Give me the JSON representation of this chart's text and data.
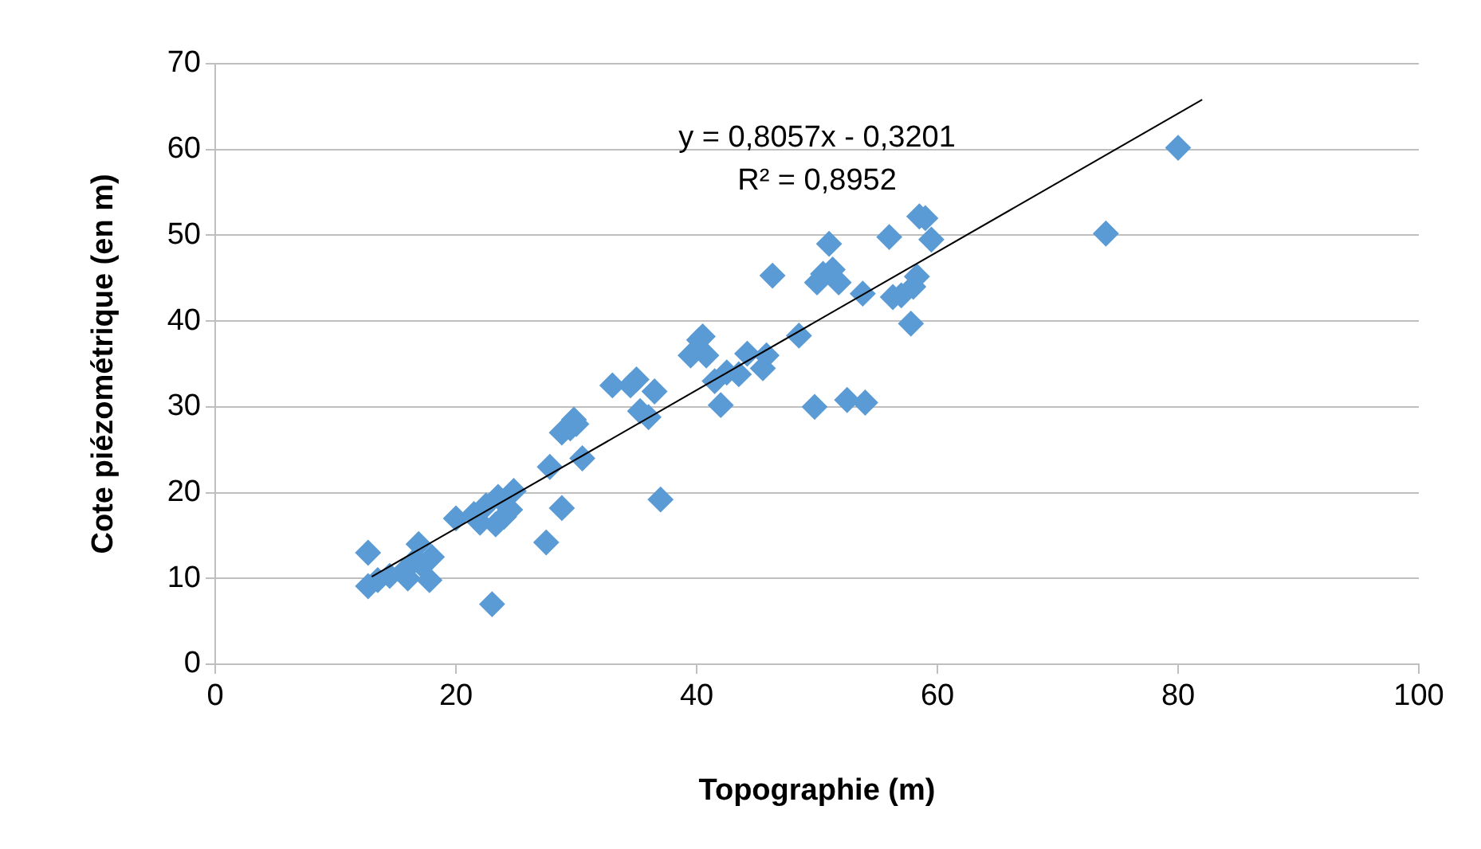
{
  "chart_data": {
    "type": "scatter",
    "xlabel": "Topographie (m)",
    "ylabel": "Cote piézométrique (en m)",
    "xlim": [
      0,
      100
    ],
    "xticks": [
      0,
      20,
      40,
      60,
      80,
      100
    ],
    "ylim": [
      0,
      70
    ],
    "yticks": [
      0,
      10,
      20,
      30,
      40,
      50,
      60,
      70
    ],
    "grid": "y",
    "legend": false,
    "marker": "diamond",
    "series": [
      {
        "color": "#5b9bd5",
        "x": [
          12.7,
          12.7,
          13.5,
          14.5,
          15.8,
          16.0,
          16.5,
          16.9,
          17.2,
          17.8,
          18.0,
          20.0,
          21.5,
          22.0,
          22.5,
          23.0,
          23.3,
          23.5,
          24.0,
          24.5,
          24.8,
          27.5,
          27.8,
          28.8,
          28.8,
          29.5,
          29.8,
          30.0,
          30.5,
          33.0,
          34.5,
          35.0,
          35.3,
          36.0,
          36.5,
          37.0,
          39.5,
          40.2,
          40.5,
          40.8,
          41.5,
          42.0,
          42.5,
          43.5,
          44.2,
          45.5,
          45.8,
          46.3,
          48.5,
          49.8,
          50.0,
          50.5,
          51.0,
          51.3,
          51.8,
          52.5,
          53.8,
          54.0,
          56.0,
          56.3,
          57.0,
          57.8,
          58.0,
          58.3,
          58.5,
          59.0,
          59.5,
          74.0,
          80.0
        ],
        "values": [
          13.0,
          9.1,
          9.8,
          10.3,
          11.0,
          10.0,
          12.0,
          14.0,
          11.5,
          9.8,
          12.5,
          17.0,
          17.5,
          16.5,
          18.5,
          7.0,
          16.3,
          19.5,
          17.2,
          18.0,
          20.2,
          14.2,
          23.0,
          18.2,
          27.0,
          27.5,
          28.5,
          28.0,
          24.0,
          32.5,
          32.5,
          33.2,
          29.5,
          28.8,
          31.8,
          19.2,
          36.0,
          37.8,
          38.2,
          36.0,
          33.0,
          30.2,
          34.0,
          33.8,
          36.2,
          34.5,
          36.0,
          45.3,
          38.3,
          30.0,
          44.5,
          45.5,
          49.0,
          46.0,
          44.5,
          30.8,
          43.2,
          30.5,
          49.8,
          42.8,
          43.0,
          39.7,
          44.0,
          45.2,
          52.2,
          52.0,
          49.5,
          50.2,
          60.2
        ]
      },
      {
        "type": "line",
        "color": "#000000",
        "marker": "none",
        "x": [
          13,
          82
        ],
        "values": [
          10.2,
          65.8
        ]
      }
    ],
    "annotations": [
      "y = 0,8057x - 0,3201",
      "R² = 0,8952"
    ]
  }
}
